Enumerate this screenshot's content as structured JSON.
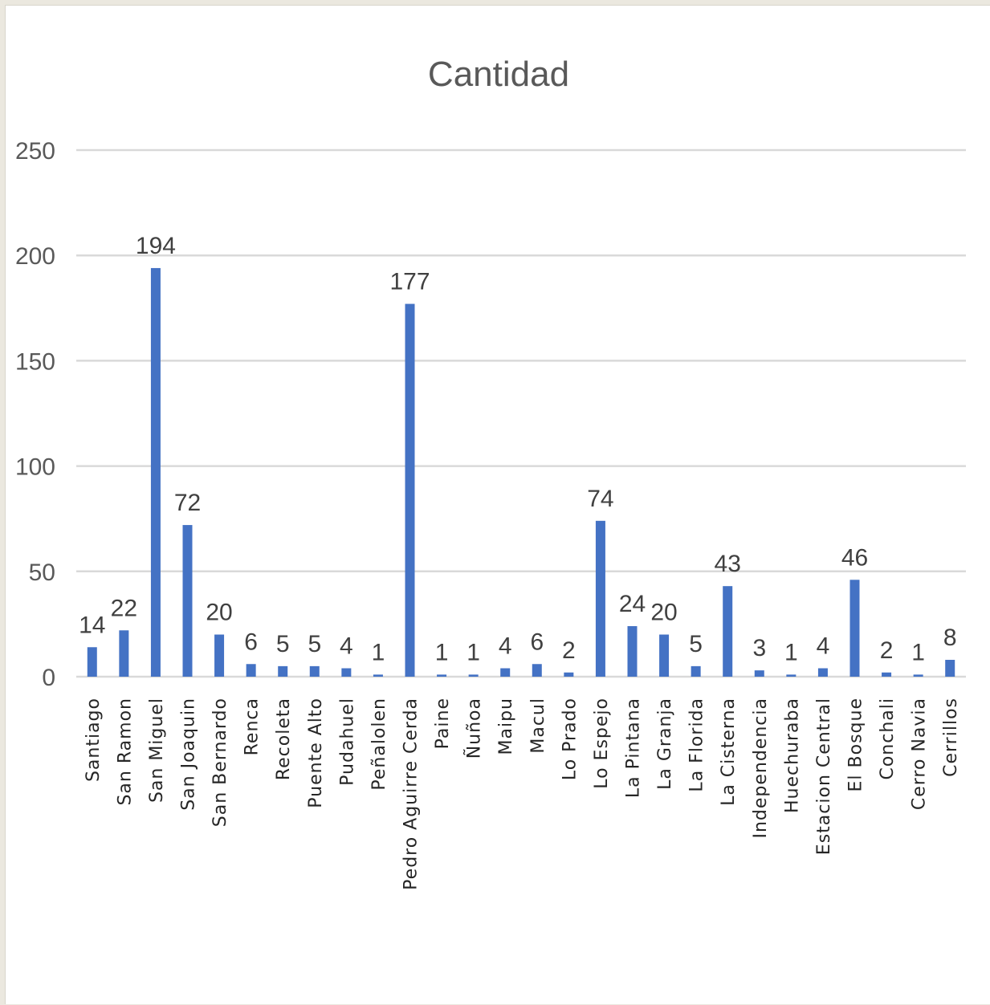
{
  "chart_data": {
    "type": "bar",
    "title": "Cantidad",
    "categories": [
      "Santiago",
      "San Ramon",
      "San Miguel",
      "San Joaquin",
      "San Bernardo",
      "Renca",
      "Recoleta",
      "Puente Alto",
      "Pudahuel",
      "Peñalolen",
      "Pedro Aguirre Cerda",
      "Paine",
      "Ñuñoa",
      "Maipu",
      "Macul",
      "Lo Prado",
      "Lo Espejo",
      "La Pintana",
      "La Granja",
      "La Florida",
      "La Cisterna",
      "Independencia",
      "Huechuraba",
      "Estacion Central",
      "El Bosque",
      "Conchali",
      "Cerro Navia",
      "Cerrillos"
    ],
    "values": [
      14,
      22,
      194,
      72,
      20,
      6,
      5,
      5,
      4,
      1,
      177,
      1,
      1,
      4,
      6,
      2,
      74,
      24,
      20,
      5,
      43,
      3,
      1,
      4,
      46,
      2,
      1,
      8
    ],
    "ylim": [
      0,
      250
    ],
    "yticks": [
      0,
      50,
      100,
      150,
      200,
      250
    ],
    "grid": true,
    "data_labels": true,
    "bar_color": "#4472c4",
    "grid_color": "#d9d9d9"
  }
}
